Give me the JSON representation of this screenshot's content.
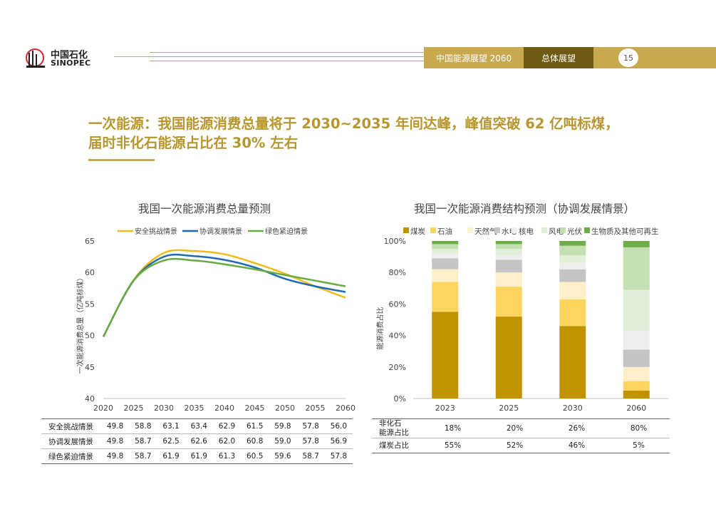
{
  "header": {
    "logo_cn": "中国石化",
    "logo_en": "SINOPEC",
    "tab_report": "中国能源展望 2060",
    "tab_section": "总体展望",
    "page_number": "15"
  },
  "headline": {
    "line1": "一次能源：我国能源消费总量将于 2030~2035 年间达峰，峰值突破 62 亿吨标煤，",
    "line2": "届时非化石能源占比在 30% 左右"
  },
  "colors": {
    "gold": "#c9a74e",
    "dark_gold": "#6e5a12",
    "headline": "#b8962e"
  },
  "chart_data": [
    {
      "type": "line",
      "title": "我国一次能源消费总量预测",
      "ylabel": "一次能源消费总量（亿吨标煤）",
      "ylim": [
        40,
        65
      ],
      "yticks": [
        "40",
        "45",
        "50",
        "55",
        "60",
        "65"
      ],
      "x": [
        "2020",
        "2025",
        "2030",
        "2035",
        "2040",
        "2045",
        "2050",
        "2055",
        "2060"
      ],
      "legend_position": "top",
      "series": [
        {
          "name": "安全挑战情景",
          "color": "#f2bb1c",
          "values": [
            49.8,
            58.8,
            63.1,
            63.4,
            62.9,
            61.5,
            59.8,
            57.8,
            56.0
          ]
        },
        {
          "name": "协调发展情景",
          "color": "#1f6ab3",
          "values": [
            49.8,
            58.7,
            62.5,
            62.6,
            62.0,
            60.8,
            59.0,
            57.8,
            56.9
          ]
        },
        {
          "name": "绿色紧迫情景",
          "color": "#6aaa45",
          "values": [
            49.8,
            58.7,
            61.9,
            61.9,
            61.3,
            60.5,
            59.6,
            58.7,
            57.8
          ]
        }
      ]
    },
    {
      "type": "bar",
      "stacked": true,
      "title": "我国一次能源消费结构预测（协调发展情景）",
      "ylabel": "能源消费占比",
      "ylim": [
        0,
        100
      ],
      "yticks": [
        "0%",
        "20%",
        "40%",
        "60%",
        "80%",
        "100%"
      ],
      "categories": [
        "2023",
        "2025",
        "2030",
        "2060"
      ],
      "legend_position": "top",
      "series": [
        {
          "name": "煤炭",
          "color": "#c09300",
          "values": [
            55,
            52,
            46,
            5
          ]
        },
        {
          "name": "石油",
          "color": "#fcd561",
          "values": [
            19,
            19,
            17,
            6
          ]
        },
        {
          "name": "天然气",
          "color": "#fdefc7",
          "values": [
            8,
            9,
            11,
            9
          ]
        },
        {
          "name": "水电",
          "color": "#c4c4c4",
          "values": [
            7,
            8,
            8,
            11
          ]
        },
        {
          "name": "核电",
          "color": "#eeeeee",
          "values": [
            3,
            3,
            4,
            12
          ]
        },
        {
          "name": "风电",
          "color": "#e2efd8",
          "values": [
            3,
            4,
            5,
            26
          ]
        },
        {
          "name": "光伏",
          "color": "#c4e0b1",
          "values": [
            3,
            3,
            6,
            27
          ]
        },
        {
          "name": "生物质及其他可再生",
          "color": "#70ad47",
          "values": [
            2,
            2,
            3,
            4
          ]
        }
      ]
    }
  ],
  "table_total": {
    "rows": [
      {
        "label": "安全挑战情景",
        "values": [
          "49.8",
          "58.8",
          "63.1",
          "63.4",
          "62.9",
          "61.5",
          "59.8",
          "57.8",
          "56.0"
        ]
      },
      {
        "label": "协调发展情景",
        "values": [
          "49.8",
          "58.7",
          "62.5",
          "62.6",
          "62.0",
          "60.8",
          "59.0",
          "57.8",
          "56.9"
        ]
      },
      {
        "label": "绿色紧迫情景",
        "values": [
          "49.8",
          "58.7",
          "61.9",
          "61.9",
          "61.3",
          "60.5",
          "59.6",
          "58.7",
          "57.8"
        ]
      }
    ]
  },
  "table_structure": {
    "rows": [
      {
        "label_line1": "非化石",
        "label_line2": "能源占比",
        "values": [
          "18%",
          "20%",
          "26%",
          "80%"
        ]
      },
      {
        "label_line1": "煤炭占比",
        "label_line2": "",
        "values": [
          "55%",
          "52%",
          "46%",
          "5%"
        ]
      }
    ]
  }
}
